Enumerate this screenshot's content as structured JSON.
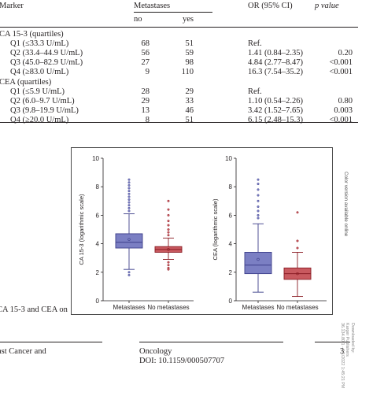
{
  "table": {
    "header": {
      "marker": "Marker",
      "metastases": "Metastases",
      "no": "no",
      "yes": "yes",
      "or": "OR (95% CI)",
      "p": "p value"
    },
    "groups": [
      {
        "title": "CA 15-3 (quartiles)",
        "rows": [
          {
            "label": "Q1 (≤33.3 U/mL)",
            "no": "68",
            "yes": "51",
            "or": "Ref.",
            "p": ""
          },
          {
            "label": "Q2 (33.4–44.9 U/mL)",
            "no": "56",
            "yes": "59",
            "or": "1.41 (0.84–2.35)",
            "p": "0.20"
          },
          {
            "label": "Q3 (45.0–82.9 U/mL)",
            "no": "27",
            "yes": "98",
            "or": "4.84 (2.77–8.47)",
            "p": "<0.001"
          },
          {
            "label": "Q4 (≥83.0 U/mL)",
            "no": "9",
            "yes": "110",
            "or": "16.3 (7.54–35.2)",
            "p": "<0.001"
          }
        ]
      },
      {
        "title": "CEA (quartiles)",
        "rows": [
          {
            "label": "Q1 (≤5.9 U/mL)",
            "no": "28",
            "yes": "29",
            "or": "Ref.",
            "p": ""
          },
          {
            "label": "Q2 (6.0–9.7 U/mL)",
            "no": "29",
            "yes": "33",
            "or": "1.10 (0.54–2.26)",
            "p": "0.80"
          },
          {
            "label": "Q3 (9.8–19.9 U/mL)",
            "no": "13",
            "yes": "46",
            "or": "3.42 (1.52–7.65)",
            "p": "0.003"
          },
          {
            "label": "Q4 (≥20.0 U/mL)",
            "no": "8",
            "yes": "51",
            "or": "6.15 (2.48–15.3)",
            "p": "<0.001"
          }
        ]
      }
    ]
  },
  "caption_fragment": "CA 15-3 and CEA on",
  "side_note": "Color version available online",
  "footer": {
    "left": "ast Cancer and",
    "journal": "Oncology",
    "doi": "DOI: 10.1159/000507707",
    "page": "3"
  },
  "download_note": {
    "line1": "Downloaded by:",
    "line2": "Karger Publishers",
    "line3": "36.134.80.1 - 6/1/2022 1:45:21 PM"
  },
  "chart_data": [
    {
      "type": "boxplot",
      "ylabel": "CA 15-3 (logarithmic scale)",
      "ylim": [
        0,
        10
      ],
      "yticks": [
        "0",
        "2",
        "4",
        "6",
        "8",
        "10"
      ],
      "categories": [
        "Metastases",
        "No metastases"
      ],
      "series": [
        {
          "category": "Metastases",
          "color": "#7b7fc3",
          "whisker_low": 2.2,
          "q1": 3.7,
          "median": 4.1,
          "q3": 4.7,
          "whisker_high": 6.1,
          "mean": 4.3,
          "outliers": [
            6.3,
            6.5,
            6.7,
            6.9,
            7.1,
            7.3,
            7.5,
            7.7,
            7.9,
            8.1,
            8.3,
            8.5,
            2.0,
            1.8
          ]
        },
        {
          "category": "No metastases",
          "color": "#c8595f",
          "whisker_low": 2.9,
          "q1": 3.4,
          "median": 3.6,
          "q3": 3.8,
          "whisker_high": 4.4,
          "mean": 3.6,
          "outliers": [
            4.6,
            4.8,
            5.0,
            5.3,
            5.6,
            6.0,
            6.4,
            7.0,
            2.7,
            2.5,
            2.3,
            2.2
          ]
        }
      ]
    },
    {
      "type": "boxplot",
      "ylabel": "CEA (logarithmic scale)",
      "ylim": [
        0,
        10
      ],
      "yticks": [
        "0",
        "2",
        "4",
        "6",
        "8",
        "10"
      ],
      "categories": [
        "Metastases",
        "No metastases"
      ],
      "series": [
        {
          "category": "Metastases",
          "color": "#7b7fc3",
          "whisker_low": 0.6,
          "q1": 1.9,
          "median": 2.5,
          "q3": 3.4,
          "whisker_high": 5.4,
          "mean": 2.9,
          "outliers": [
            5.8,
            6.0,
            6.3,
            6.6,
            7.0,
            7.4,
            7.8,
            8.2,
            8.5
          ]
        },
        {
          "category": "No metastases",
          "color": "#c8595f",
          "whisker_low": 0.3,
          "q1": 1.5,
          "median": 1.9,
          "q3": 2.3,
          "whisker_high": 3.4,
          "mean": 1.9,
          "outliers": [
            3.7,
            4.2,
            6.2
          ]
        }
      ]
    }
  ]
}
